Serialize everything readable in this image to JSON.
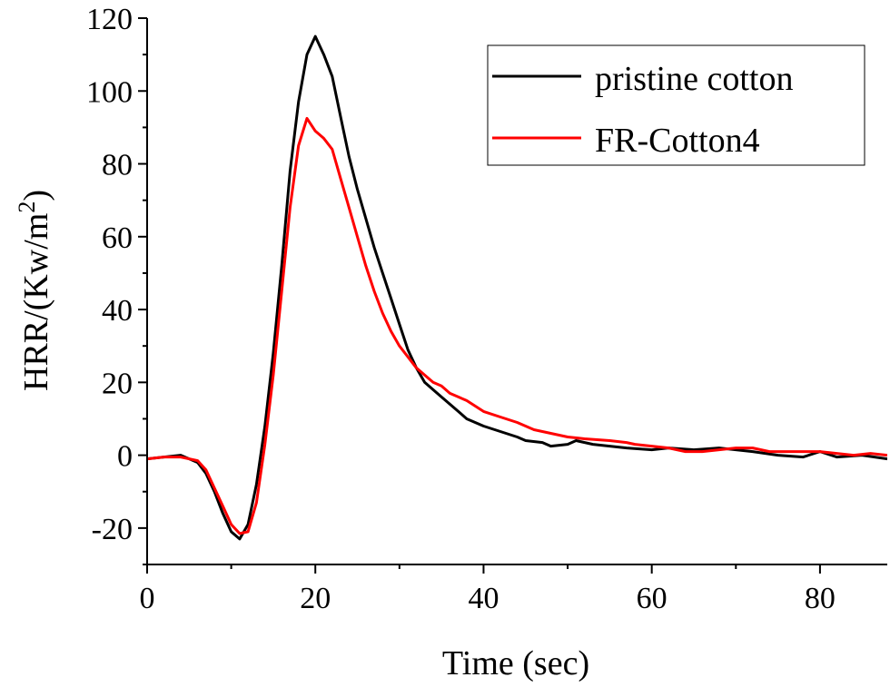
{
  "chart_data": {
    "type": "line",
    "title": "",
    "xlabel": "Time (sec)",
    "ylabel": "HRR/(Kw/m",
    "ylabel_superscript": "2",
    "ylabel_suffix": ")",
    "xlim": [
      0,
      88
    ],
    "ylim": [
      -30,
      120
    ],
    "x_ticks": [
      0,
      20,
      40,
      60,
      80
    ],
    "x_tick_labels": [
      "0",
      "20",
      "40",
      "60",
      "80"
    ],
    "y_ticks": [
      -20,
      0,
      20,
      40,
      60,
      80,
      100,
      120
    ],
    "y_tick_labels": [
      "-20",
      "0",
      "20",
      "40",
      "60",
      "80",
      "100",
      "120"
    ],
    "grid": false,
    "legend_position": "top-right",
    "series": [
      {
        "name": "pristine cotton",
        "color": "#000000",
        "points": [
          [
            0,
            -1
          ],
          [
            2,
            -0.5
          ],
          [
            4,
            0
          ],
          [
            6,
            -2
          ],
          [
            7,
            -5
          ],
          [
            8,
            -10
          ],
          [
            9,
            -16
          ],
          [
            10,
            -21
          ],
          [
            11,
            -23
          ],
          [
            12,
            -19
          ],
          [
            13,
            -8
          ],
          [
            14,
            8
          ],
          [
            15,
            28
          ],
          [
            16,
            52
          ],
          [
            17,
            78
          ],
          [
            18,
            97
          ],
          [
            19,
            110
          ],
          [
            20,
            115
          ],
          [
            21,
            110
          ],
          [
            22,
            104
          ],
          [
            23,
            93
          ],
          [
            24,
            82
          ],
          [
            25,
            73
          ],
          [
            26,
            65
          ],
          [
            27,
            57
          ],
          [
            28,
            50
          ],
          [
            29,
            43
          ],
          [
            30,
            36
          ],
          [
            31,
            29
          ],
          [
            32,
            24
          ],
          [
            33,
            20
          ],
          [
            34,
            18
          ],
          [
            35,
            16
          ],
          [
            36,
            14
          ],
          [
            37,
            12
          ],
          [
            38,
            10
          ],
          [
            40,
            8
          ],
          [
            42,
            6.5
          ],
          [
            44,
            5
          ],
          [
            45,
            4
          ],
          [
            47,
            3.5
          ],
          [
            48,
            2.5
          ],
          [
            50,
            3
          ],
          [
            51,
            4
          ],
          [
            53,
            3
          ],
          [
            55,
            2.5
          ],
          [
            57,
            2
          ],
          [
            60,
            1.5
          ],
          [
            62,
            2
          ],
          [
            65,
            1.5
          ],
          [
            68,
            2
          ],
          [
            70,
            1.5
          ],
          [
            72,
            1
          ],
          [
            75,
            0
          ],
          [
            78,
            -0.5
          ],
          [
            80,
            1
          ],
          [
            82,
            -0.5
          ],
          [
            85,
            0
          ],
          [
            88,
            -1
          ]
        ]
      },
      {
        "name": "FR-Cotton4",
        "color": "#ff0000",
        "points": [
          [
            0,
            -1
          ],
          [
            2,
            -0.5
          ],
          [
            4,
            -0.5
          ],
          [
            6,
            -1.5
          ],
          [
            7,
            -4
          ],
          [
            8,
            -9
          ],
          [
            9,
            -14
          ],
          [
            10,
            -19
          ],
          [
            11,
            -21.5
          ],
          [
            12,
            -21
          ],
          [
            13,
            -13
          ],
          [
            14,
            3
          ],
          [
            15,
            22
          ],
          [
            16,
            45
          ],
          [
            17,
            68
          ],
          [
            18,
            85
          ],
          [
            19,
            92.5
          ],
          [
            20,
            89
          ],
          [
            21,
            87
          ],
          [
            22,
            84
          ],
          [
            23,
            76
          ],
          [
            24,
            68
          ],
          [
            25,
            60
          ],
          [
            26,
            52
          ],
          [
            27,
            45
          ],
          [
            28,
            39
          ],
          [
            29,
            34
          ],
          [
            30,
            30
          ],
          [
            31,
            27
          ],
          [
            32,
            24
          ],
          [
            33,
            22
          ],
          [
            34,
            20
          ],
          [
            35,
            19
          ],
          [
            36,
            17
          ],
          [
            37,
            16
          ],
          [
            38,
            15
          ],
          [
            40,
            12
          ],
          [
            42,
            10.5
          ],
          [
            44,
            9
          ],
          [
            46,
            7
          ],
          [
            48,
            6
          ],
          [
            50,
            5
          ],
          [
            52,
            4.5
          ],
          [
            55,
            4
          ],
          [
            57,
            3.5
          ],
          [
            58,
            3
          ],
          [
            60,
            2.5
          ],
          [
            62,
            2
          ],
          [
            64,
            1
          ],
          [
            66,
            1
          ],
          [
            68,
            1.5
          ],
          [
            70,
            2
          ],
          [
            72,
            2
          ],
          [
            74,
            1
          ],
          [
            76,
            1
          ],
          [
            78,
            1
          ],
          [
            80,
            1
          ],
          [
            82,
            0.5
          ],
          [
            84,
            0
          ],
          [
            86,
            0.5
          ],
          [
            88,
            0
          ]
        ]
      }
    ]
  }
}
